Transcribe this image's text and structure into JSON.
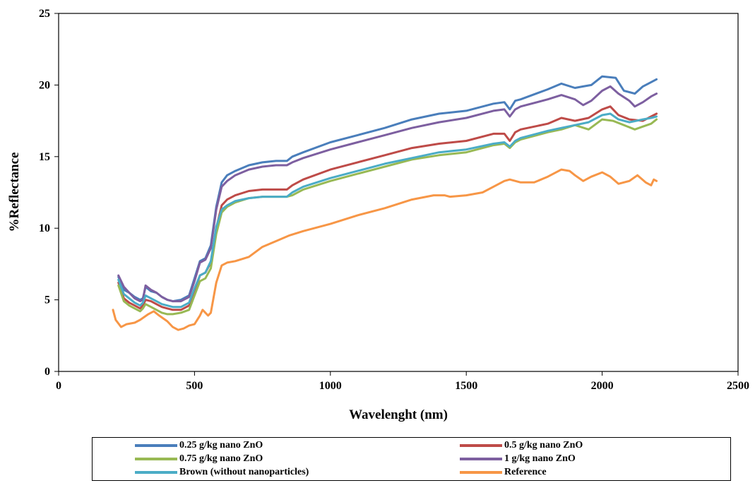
{
  "chart_data": {
    "type": "line",
    "title": "",
    "xlabel": "Wavelenght (nm)",
    "ylabel": "%Reflectance",
    "xlim": [
      0,
      2500
    ],
    "ylim": [
      0,
      25
    ],
    "xticks": [
      "0",
      "500",
      "1000",
      "1500",
      "2000",
      "2500"
    ],
    "yticks": [
      "0",
      "5",
      "10",
      "15",
      "20",
      "25"
    ],
    "grid": false,
    "legend_position": "bottom",
    "series": [
      {
        "name": "0.25 g/kg nano ZnO",
        "color": "#4a7ebb",
        "points": [
          [
            220,
            6.6
          ],
          [
            240,
            5.7
          ],
          [
            260,
            5.5
          ],
          [
            280,
            5.2
          ],
          [
            300,
            5.0
          ],
          [
            310,
            5.1
          ],
          [
            320,
            5.9
          ],
          [
            340,
            5.6
          ],
          [
            360,
            5.5
          ],
          [
            380,
            5.2
          ],
          [
            400,
            5.0
          ],
          [
            420,
            4.9
          ],
          [
            450,
            5.0
          ],
          [
            480,
            5.3
          ],
          [
            500,
            6.5
          ],
          [
            520,
            7.7
          ],
          [
            540,
            7.9
          ],
          [
            560,
            8.8
          ],
          [
            580,
            11.5
          ],
          [
            600,
            13.2
          ],
          [
            620,
            13.7
          ],
          [
            650,
            14.0
          ],
          [
            700,
            14.4
          ],
          [
            750,
            14.6
          ],
          [
            800,
            14.7
          ],
          [
            840,
            14.7
          ],
          [
            860,
            15.0
          ],
          [
            900,
            15.3
          ],
          [
            1000,
            16.0
          ],
          [
            1100,
            16.5
          ],
          [
            1200,
            17.0
          ],
          [
            1300,
            17.6
          ],
          [
            1400,
            18.0
          ],
          [
            1500,
            18.2
          ],
          [
            1600,
            18.7
          ],
          [
            1640,
            18.8
          ],
          [
            1660,
            18.3
          ],
          [
            1680,
            18.9
          ],
          [
            1700,
            19.0
          ],
          [
            1800,
            19.7
          ],
          [
            1850,
            20.1
          ],
          [
            1900,
            19.8
          ],
          [
            1930,
            19.9
          ],
          [
            1960,
            20.0
          ],
          [
            2000,
            20.6
          ],
          [
            2050,
            20.5
          ],
          [
            2080,
            19.6
          ],
          [
            2100,
            19.5
          ],
          [
            2120,
            19.4
          ],
          [
            2150,
            19.9
          ],
          [
            2170,
            20.1
          ],
          [
            2200,
            20.4
          ]
        ]
      },
      {
        "name": "0.5 g/kg nano ZnO",
        "color": "#be4b48",
        "points": [
          [
            220,
            6.2
          ],
          [
            240,
            5.1
          ],
          [
            260,
            4.8
          ],
          [
            280,
            4.6
          ],
          [
            300,
            4.4
          ],
          [
            310,
            4.6
          ],
          [
            320,
            5.0
          ],
          [
            340,
            4.9
          ],
          [
            360,
            4.7
          ],
          [
            380,
            4.5
          ],
          [
            400,
            4.4
          ],
          [
            420,
            4.3
          ],
          [
            450,
            4.3
          ],
          [
            480,
            4.6
          ],
          [
            500,
            5.6
          ],
          [
            520,
            6.7
          ],
          [
            540,
            6.9
          ],
          [
            560,
            7.6
          ],
          [
            580,
            10.0
          ],
          [
            600,
            11.6
          ],
          [
            620,
            12.0
          ],
          [
            650,
            12.3
          ],
          [
            700,
            12.6
          ],
          [
            750,
            12.7
          ],
          [
            800,
            12.7
          ],
          [
            840,
            12.7
          ],
          [
            860,
            13.0
          ],
          [
            900,
            13.4
          ],
          [
            1000,
            14.1
          ],
          [
            1100,
            14.6
          ],
          [
            1200,
            15.1
          ],
          [
            1300,
            15.6
          ],
          [
            1400,
            15.9
          ],
          [
            1500,
            16.1
          ],
          [
            1600,
            16.6
          ],
          [
            1640,
            16.6
          ],
          [
            1660,
            16.1
          ],
          [
            1680,
            16.7
          ],
          [
            1700,
            16.9
          ],
          [
            1800,
            17.3
          ],
          [
            1850,
            17.7
          ],
          [
            1900,
            17.5
          ],
          [
            1950,
            17.7
          ],
          [
            2000,
            18.3
          ],
          [
            2030,
            18.5
          ],
          [
            2060,
            17.9
          ],
          [
            2100,
            17.6
          ],
          [
            2150,
            17.5
          ],
          [
            2180,
            17.8
          ],
          [
            2200,
            18.0
          ]
        ]
      },
      {
        "name": "0.75 g/kg nano ZnO",
        "color": "#98b954",
        "points": [
          [
            220,
            6.0
          ],
          [
            240,
            4.9
          ],
          [
            260,
            4.6
          ],
          [
            280,
            4.4
          ],
          [
            300,
            4.2
          ],
          [
            310,
            4.4
          ],
          [
            320,
            4.7
          ],
          [
            340,
            4.5
          ],
          [
            360,
            4.3
          ],
          [
            380,
            4.1
          ],
          [
            400,
            4.0
          ],
          [
            420,
            4.0
          ],
          [
            450,
            4.1
          ],
          [
            480,
            4.3
          ],
          [
            500,
            5.3
          ],
          [
            520,
            6.3
          ],
          [
            540,
            6.5
          ],
          [
            560,
            7.2
          ],
          [
            580,
            9.6
          ],
          [
            600,
            11.1
          ],
          [
            620,
            11.5
          ],
          [
            650,
            11.8
          ],
          [
            700,
            12.1
          ],
          [
            750,
            12.2
          ],
          [
            800,
            12.2
          ],
          [
            840,
            12.2
          ],
          [
            860,
            12.3
          ],
          [
            900,
            12.7
          ],
          [
            1000,
            13.3
          ],
          [
            1100,
            13.8
          ],
          [
            1200,
            14.3
          ],
          [
            1300,
            14.8
          ],
          [
            1400,
            15.1
          ],
          [
            1500,
            15.3
          ],
          [
            1600,
            15.8
          ],
          [
            1640,
            15.9
          ],
          [
            1660,
            15.6
          ],
          [
            1680,
            16.0
          ],
          [
            1700,
            16.2
          ],
          [
            1800,
            16.7
          ],
          [
            1850,
            16.9
          ],
          [
            1900,
            17.2
          ],
          [
            1950,
            16.9
          ],
          [
            2000,
            17.6
          ],
          [
            2040,
            17.5
          ],
          [
            2080,
            17.2
          ],
          [
            2120,
            16.9
          ],
          [
            2150,
            17.1
          ],
          [
            2180,
            17.3
          ],
          [
            2200,
            17.6
          ]
        ]
      },
      {
        "name": "1 g/kg nano ZnO",
        "color": "#7d5fa0",
        "points": [
          [
            220,
            6.7
          ],
          [
            240,
            5.9
          ],
          [
            260,
            5.5
          ],
          [
            280,
            5.1
          ],
          [
            300,
            4.9
          ],
          [
            310,
            5.0
          ],
          [
            320,
            6.0
          ],
          [
            340,
            5.7
          ],
          [
            360,
            5.5
          ],
          [
            380,
            5.2
          ],
          [
            400,
            5.0
          ],
          [
            420,
            4.9
          ],
          [
            450,
            4.9
          ],
          [
            480,
            5.2
          ],
          [
            500,
            6.3
          ],
          [
            520,
            7.6
          ],
          [
            540,
            7.8
          ],
          [
            560,
            8.6
          ],
          [
            580,
            11.3
          ],
          [
            600,
            12.9
          ],
          [
            620,
            13.3
          ],
          [
            650,
            13.7
          ],
          [
            700,
            14.1
          ],
          [
            750,
            14.3
          ],
          [
            800,
            14.4
          ],
          [
            840,
            14.4
          ],
          [
            860,
            14.6
          ],
          [
            900,
            14.9
          ],
          [
            1000,
            15.5
          ],
          [
            1100,
            16.0
          ],
          [
            1200,
            16.5
          ],
          [
            1300,
            17.0
          ],
          [
            1400,
            17.4
          ],
          [
            1500,
            17.7
          ],
          [
            1600,
            18.2
          ],
          [
            1640,
            18.3
          ],
          [
            1660,
            17.8
          ],
          [
            1680,
            18.3
          ],
          [
            1700,
            18.5
          ],
          [
            1800,
            19.0
          ],
          [
            1850,
            19.3
          ],
          [
            1900,
            19.0
          ],
          [
            1930,
            18.6
          ],
          [
            1960,
            18.9
          ],
          [
            2000,
            19.6
          ],
          [
            2030,
            19.9
          ],
          [
            2060,
            19.4
          ],
          [
            2100,
            18.9
          ],
          [
            2120,
            18.5
          ],
          [
            2150,
            18.8
          ],
          [
            2180,
            19.2
          ],
          [
            2200,
            19.4
          ]
        ]
      },
      {
        "name": "Brown (without nanoparticles)",
        "color": "#4bacc6",
        "points": [
          [
            220,
            6.4
          ],
          [
            240,
            5.4
          ],
          [
            260,
            5.1
          ],
          [
            280,
            4.8
          ],
          [
            300,
            4.6
          ],
          [
            310,
            4.8
          ],
          [
            320,
            5.3
          ],
          [
            340,
            5.1
          ],
          [
            360,
            4.9
          ],
          [
            380,
            4.7
          ],
          [
            400,
            4.6
          ],
          [
            420,
            4.5
          ],
          [
            450,
            4.5
          ],
          [
            480,
            4.8
          ],
          [
            500,
            5.8
          ],
          [
            520,
            6.7
          ],
          [
            540,
            6.9
          ],
          [
            560,
            7.7
          ],
          [
            580,
            10.1
          ],
          [
            600,
            11.3
          ],
          [
            620,
            11.6
          ],
          [
            650,
            11.9
          ],
          [
            700,
            12.1
          ],
          [
            750,
            12.2
          ],
          [
            800,
            12.2
          ],
          [
            840,
            12.2
          ],
          [
            860,
            12.5
          ],
          [
            900,
            12.9
          ],
          [
            1000,
            13.5
          ],
          [
            1100,
            14.0
          ],
          [
            1200,
            14.5
          ],
          [
            1300,
            14.9
          ],
          [
            1400,
            15.3
          ],
          [
            1500,
            15.5
          ],
          [
            1600,
            15.9
          ],
          [
            1640,
            16.0
          ],
          [
            1660,
            15.7
          ],
          [
            1680,
            16.1
          ],
          [
            1700,
            16.3
          ],
          [
            1800,
            16.8
          ],
          [
            1850,
            17.0
          ],
          [
            1900,
            17.2
          ],
          [
            1950,
            17.4
          ],
          [
            2000,
            17.9
          ],
          [
            2030,
            18.0
          ],
          [
            2060,
            17.6
          ],
          [
            2100,
            17.4
          ],
          [
            2150,
            17.6
          ],
          [
            2180,
            17.7
          ],
          [
            2200,
            17.8
          ]
        ]
      },
      {
        "name": "Reference",
        "color": "#f79646",
        "points": [
          [
            200,
            4.3
          ],
          [
            210,
            3.6
          ],
          [
            230,
            3.1
          ],
          [
            250,
            3.3
          ],
          [
            280,
            3.4
          ],
          [
            300,
            3.6
          ],
          [
            330,
            4.0
          ],
          [
            350,
            4.2
          ],
          [
            370,
            3.9
          ],
          [
            400,
            3.5
          ],
          [
            420,
            3.1
          ],
          [
            440,
            2.9
          ],
          [
            460,
            3.0
          ],
          [
            480,
            3.2
          ],
          [
            500,
            3.3
          ],
          [
            520,
            3.9
          ],
          [
            530,
            4.3
          ],
          [
            550,
            3.9
          ],
          [
            560,
            4.1
          ],
          [
            580,
            6.2
          ],
          [
            600,
            7.4
          ],
          [
            620,
            7.6
          ],
          [
            650,
            7.7
          ],
          [
            700,
            8.0
          ],
          [
            750,
            8.7
          ],
          [
            800,
            9.1
          ],
          [
            850,
            9.5
          ],
          [
            900,
            9.8
          ],
          [
            1000,
            10.3
          ],
          [
            1100,
            10.9
          ],
          [
            1200,
            11.4
          ],
          [
            1300,
            12.0
          ],
          [
            1380,
            12.3
          ],
          [
            1420,
            12.3
          ],
          [
            1440,
            12.2
          ],
          [
            1500,
            12.3
          ],
          [
            1560,
            12.5
          ],
          [
            1600,
            12.9
          ],
          [
            1640,
            13.3
          ],
          [
            1660,
            13.4
          ],
          [
            1700,
            13.2
          ],
          [
            1750,
            13.2
          ],
          [
            1800,
            13.6
          ],
          [
            1850,
            14.1
          ],
          [
            1880,
            14.0
          ],
          [
            1900,
            13.7
          ],
          [
            1930,
            13.3
          ],
          [
            1960,
            13.6
          ],
          [
            2000,
            13.9
          ],
          [
            2030,
            13.6
          ],
          [
            2060,
            13.1
          ],
          [
            2100,
            13.3
          ],
          [
            2130,
            13.7
          ],
          [
            2160,
            13.2
          ],
          [
            2180,
            13.0
          ],
          [
            2190,
            13.4
          ],
          [
            2200,
            13.3
          ]
        ]
      }
    ]
  }
}
